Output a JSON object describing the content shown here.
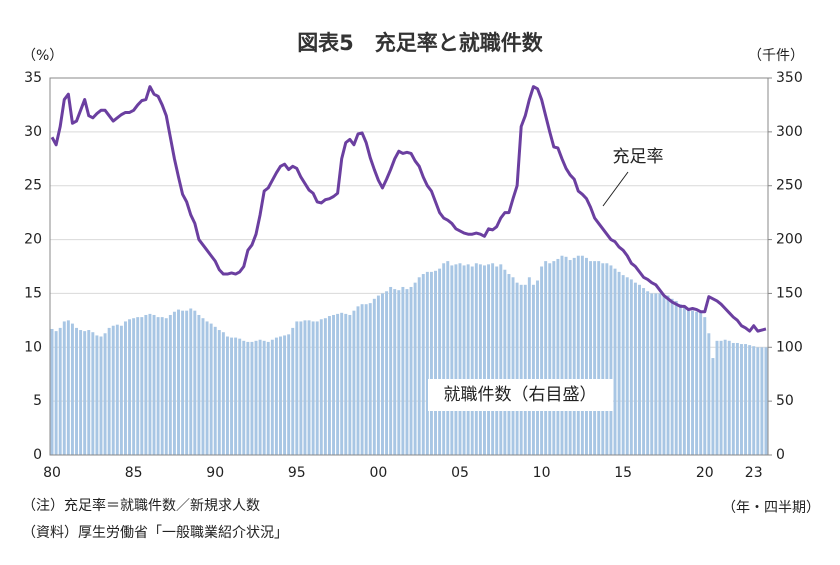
{
  "chart_data": {
    "type": "combo",
    "title": "図表5　充足率と就職件数",
    "y_label": "（%）",
    "y2_label": "（千件）",
    "x_label": "（年・四半期）",
    "notes": [
      "（注）充足率＝就職件数／新規求人数",
      "（資料）厚生労働省「一般職業紹介状況」"
    ],
    "categories": [
      "80",
      null,
      null,
      null,
      null,
      null,
      null,
      null,
      null,
      null,
      null,
      null,
      null,
      null,
      null,
      null,
      null,
      null,
      null,
      null,
      "85",
      null,
      null,
      null,
      null,
      null,
      null,
      null,
      null,
      null,
      null,
      null,
      null,
      null,
      null,
      null,
      null,
      null,
      null,
      null,
      "90",
      null,
      null,
      null,
      null,
      null,
      null,
      null,
      null,
      null,
      null,
      null,
      null,
      null,
      null,
      null,
      null,
      null,
      null,
      null,
      "95",
      null,
      null,
      null,
      null,
      null,
      null,
      null,
      null,
      null,
      null,
      null,
      null,
      null,
      null,
      null,
      null,
      null,
      null,
      null,
      "00",
      null,
      null,
      null,
      null,
      null,
      null,
      null,
      null,
      null,
      null,
      null,
      null,
      null,
      null,
      null,
      null,
      null,
      null,
      null,
      "05",
      null,
      null,
      null,
      null,
      null,
      null,
      null,
      null,
      null,
      null,
      null,
      null,
      null,
      null,
      null,
      null,
      null,
      null,
      null,
      "10",
      null,
      null,
      null,
      null,
      null,
      null,
      null,
      null,
      null,
      null,
      null,
      null,
      null,
      null,
      null,
      null,
      null,
      null,
      null,
      "15",
      null,
      null,
      null,
      null,
      null,
      null,
      null,
      null,
      null,
      null,
      null,
      null,
      null,
      null,
      null,
      null,
      null,
      null,
      null,
      "20",
      null,
      null,
      null,
      null,
      null,
      null,
      null,
      null,
      null,
      null,
      null,
      "23",
      null,
      null,
      null
    ],
    "ylim": [
      0,
      35
    ],
    "yticks": [
      0,
      5,
      10,
      15,
      20,
      25,
      30,
      35
    ],
    "y2lim": [
      0,
      350
    ],
    "y2ticks": [
      0,
      50,
      100,
      150,
      200,
      250,
      300,
      350
    ],
    "grid": true,
    "series": [
      {
        "name": "就職件数（右目盛）",
        "type": "bar",
        "axis": "y2",
        "color": "#a8c6e4",
        "values": [
          117,
          115,
          118,
          124,
          125,
          122,
          118,
          116,
          115,
          116,
          114,
          111,
          110,
          113,
          118,
          120,
          121,
          120,
          124,
          126,
          127,
          128,
          128,
          130,
          131,
          130,
          128,
          128,
          127,
          130,
          133,
          135,
          134,
          134,
          136,
          134,
          130,
          127,
          124,
          122,
          119,
          116,
          114,
          110,
          109,
          109,
          108,
          106,
          105,
          105,
          106,
          107,
          106,
          105,
          107,
          109,
          110,
          111,
          112,
          118,
          124,
          124,
          125,
          125,
          124,
          124,
          126,
          127,
          129,
          130,
          131,
          132,
          131,
          130,
          134,
          138,
          140,
          140,
          141,
          145,
          148,
          150,
          152,
          156,
          154,
          153,
          156,
          154,
          156,
          160,
          165,
          168,
          170,
          170,
          171,
          173,
          178,
          180,
          176,
          177,
          178,
          176,
          177,
          175,
          178,
          177,
          176,
          177,
          178,
          175,
          177,
          172,
          168,
          165,
          160,
          158,
          158,
          165,
          158,
          162,
          175,
          180,
          178,
          180,
          182,
          185,
          184,
          181,
          183,
          185,
          185,
          183,
          180,
          180,
          180,
          178,
          178,
          176,
          173,
          170,
          167,
          165,
          163,
          160,
          158,
          155,
          152,
          150,
          150,
          150,
          148,
          148,
          145,
          143,
          140,
          137,
          136,
          134,
          133,
          132,
          128,
          113,
          90,
          106,
          106,
          107,
          106,
          104,
          104,
          103,
          103,
          102,
          101,
          100,
          100,
          100
        ]
      },
      {
        "name": "充足率",
        "type": "line",
        "axis": "y",
        "color": "#6b3fa0",
        "values": [
          29.5,
          28.8,
          30.5,
          33.0,
          33.5,
          30.8,
          31.0,
          32.0,
          33.0,
          31.5,
          31.3,
          31.7,
          32.0,
          32.0,
          31.5,
          31.0,
          31.3,
          31.6,
          31.8,
          31.8,
          32.0,
          32.5,
          32.9,
          33.0,
          34.2,
          33.5,
          33.3,
          32.5,
          31.5,
          29.5,
          27.5,
          25.8,
          24.2,
          23.5,
          22.3,
          21.5,
          20.0,
          19.5,
          19.0,
          18.5,
          18.0,
          17.2,
          16.8,
          16.8,
          16.9,
          16.8,
          17.0,
          17.5,
          19.0,
          19.5,
          20.5,
          22.3,
          24.5,
          24.8,
          25.5,
          26.2,
          26.8,
          27.0,
          26.5,
          26.8,
          26.6,
          25.8,
          25.2,
          24.6,
          24.3,
          23.5,
          23.4,
          23.7,
          23.8,
          24.0,
          24.3,
          27.5,
          29.0,
          29.3,
          28.8,
          29.8,
          29.9,
          29.0,
          27.6,
          26.5,
          25.5,
          24.8,
          25.6,
          26.5,
          27.5,
          28.2,
          28.0,
          28.1,
          28.0,
          27.3,
          26.8,
          25.8,
          25.0,
          24.5,
          23.5,
          22.5,
          22.0,
          21.8,
          21.5,
          21.0,
          20.8,
          20.6,
          20.5,
          20.5,
          20.6,
          20.5,
          20.3,
          21.0,
          20.9,
          21.2,
          22.0,
          22.5,
          22.5,
          23.8,
          25.0,
          30.5,
          31.5,
          33.0,
          34.2,
          34.0,
          33.0,
          31.5,
          30.0,
          28.6,
          28.5,
          27.5,
          26.6,
          26.0,
          25.6,
          24.5,
          24.2,
          23.8,
          23.0,
          22.0,
          21.5,
          21.0,
          20.5,
          20.0,
          19.8,
          19.3,
          19.0,
          18.5,
          17.8,
          17.5,
          17.0,
          16.5,
          16.3,
          16.0,
          15.8,
          15.3,
          14.8,
          14.5,
          14.2,
          14.0,
          13.8,
          13.8,
          13.5,
          13.6,
          13.5,
          13.3,
          13.3,
          14.7,
          14.5,
          14.3,
          14.0,
          13.6,
          13.2,
          12.8,
          12.5,
          12.0,
          11.8,
          11.5,
          12.0,
          11.5,
          11.6,
          11.7
        ]
      }
    ]
  }
}
